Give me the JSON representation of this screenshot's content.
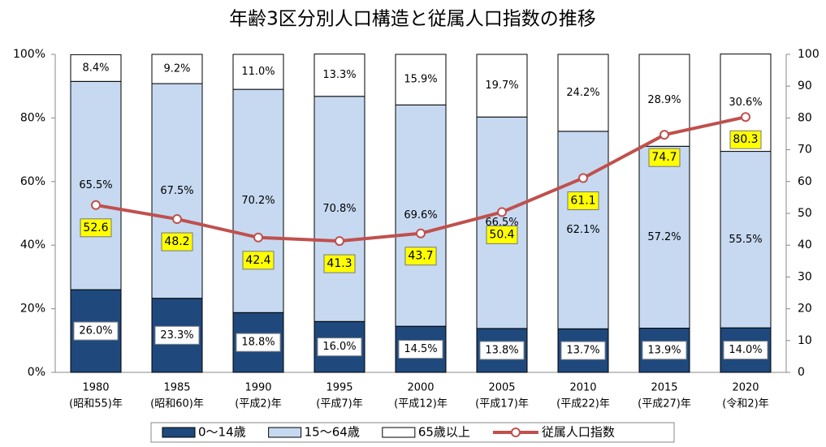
{
  "chart_data": {
    "type": "stacked-bar-line",
    "title": "年齢3区分別人口構造と従属人口指数の推移",
    "categories": [
      [
        "1980",
        "(昭和55)年"
      ],
      [
        "1985",
        "(昭和60)年"
      ],
      [
        "1990",
        "(平成2)年"
      ],
      [
        "1995",
        "(平成7)年"
      ],
      [
        "2000",
        "(平成12)年"
      ],
      [
        "2005",
        "(平成17)年"
      ],
      [
        "2010",
        "(平成22)年"
      ],
      [
        "2015",
        "(平成27)年"
      ],
      [
        "2020",
        "(令和2)年"
      ]
    ],
    "series": [
      {
        "name": "0〜14歳",
        "type": "bar",
        "color": "#1f497d",
        "values": [
          26.0,
          23.3,
          18.8,
          16.0,
          14.5,
          13.8,
          13.7,
          13.9,
          14.0
        ],
        "value_labels": [
          "26.0%",
          "23.3%",
          "18.8%",
          "16.0%",
          "14.5%",
          "13.8%",
          "13.7%",
          "13.9%",
          "14.0%"
        ]
      },
      {
        "name": "15〜64歳",
        "type": "bar",
        "color": "#c6d9f1",
        "values": [
          65.5,
          67.5,
          70.2,
          70.8,
          69.6,
          66.5,
          62.1,
          57.2,
          55.5
        ],
        "value_labels": [
          "65.5%",
          "67.5%",
          "70.2%",
          "70.8%",
          "69.6%",
          "66.5%",
          "62.1%",
          "57.2%",
          "55.5%"
        ]
      },
      {
        "name": "65歳以上",
        "type": "bar",
        "color": "#ffffff",
        "values": [
          8.4,
          9.2,
          11.0,
          13.3,
          15.9,
          19.7,
          24.2,
          28.9,
          30.6
        ],
        "value_labels": [
          "8.4%",
          "9.2%",
          "11.0%",
          "13.3%",
          "15.9%",
          "19.7%",
          "24.2%",
          "28.9%",
          "30.6%"
        ]
      },
      {
        "name": "従属人口指数",
        "type": "line",
        "axis": "y2",
        "color": "#c0504d",
        "values": [
          52.6,
          48.2,
          42.4,
          41.3,
          43.7,
          50.4,
          61.1,
          74.7,
          80.3
        ]
      }
    ],
    "ylim": [
      0,
      100
    ],
    "yticks": [
      {
        "value": 0,
        "label": "0%"
      },
      {
        "value": 20,
        "label": "20%"
      },
      {
        "value": 40,
        "label": "40%"
      },
      {
        "value": 60,
        "label": "60%"
      },
      {
        "value": 80,
        "label": "80%"
      },
      {
        "value": 100,
        "label": "100%"
      }
    ],
    "y2lim": [
      0,
      100
    ],
    "y2ticks": [
      0,
      10,
      20,
      30,
      40,
      50,
      60,
      70,
      80,
      90,
      100
    ],
    "grid": false,
    "legend": "bottom"
  }
}
